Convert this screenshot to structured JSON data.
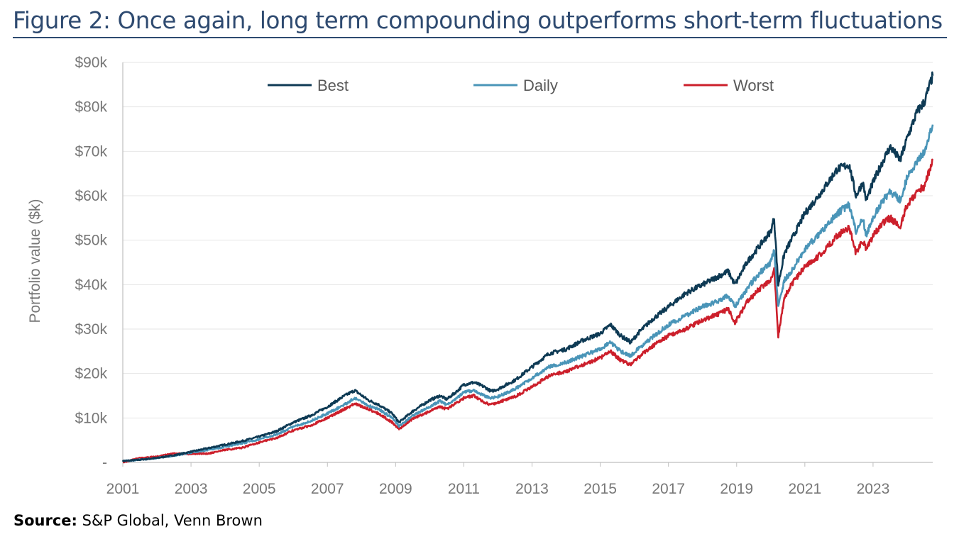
{
  "title": "Figure 2: Once again, long term compounding outperforms short-term fluctuations",
  "source": {
    "label": "Source:",
    "text": " S&P Global, Venn Brown"
  },
  "chart_data": {
    "type": "line",
    "ylabel": "Portfolio value ($k)",
    "xlabel": "",
    "xlim": [
      2001.0,
      2024.75
    ],
    "ylim": [
      0,
      90
    ],
    "yticks": [
      {
        "value": 0,
        "label": "-"
      },
      {
        "value": 10,
        "label": "$10k"
      },
      {
        "value": 20,
        "label": "$20k"
      },
      {
        "value": 30,
        "label": "$30k"
      },
      {
        "value": 40,
        "label": "$40k"
      },
      {
        "value": 50,
        "label": "$50k"
      },
      {
        "value": 60,
        "label": "$60k"
      },
      {
        "value": 70,
        "label": "$70k"
      },
      {
        "value": 80,
        "label": "$80k"
      },
      {
        "value": 90,
        "label": "$90k"
      }
    ],
    "xticks": [
      2001,
      2003,
      2005,
      2007,
      2009,
      2011,
      2013,
      2015,
      2017,
      2019,
      2021,
      2023
    ],
    "grid": "horizontal",
    "legend_position": "top",
    "series": [
      {
        "name": "Best",
        "color": "#0e3a54",
        "x": [
          2001.0,
          2001.5,
          2002.0,
          2002.5,
          2003.0,
          2003.5,
          2004.0,
          2004.5,
          2005.0,
          2005.5,
          2006.0,
          2006.5,
          2007.0,
          2007.5,
          2007.8,
          2008.2,
          2008.5,
          2008.9,
          2009.1,
          2009.5,
          2010.0,
          2010.3,
          2010.5,
          2010.8,
          2011.0,
          2011.3,
          2011.6,
          2011.8,
          2012.0,
          2012.5,
          2013.0,
          2013.5,
          2014.0,
          2014.5,
          2015.0,
          2015.3,
          2015.6,
          2015.9,
          2016.1,
          2016.5,
          2017.0,
          2017.5,
          2018.0,
          2018.5,
          2018.75,
          2018.95,
          2019.3,
          2019.6,
          2020.0,
          2020.1,
          2020.22,
          2020.4,
          2020.6,
          2021.0,
          2021.5,
          2021.95,
          2022.3,
          2022.5,
          2022.7,
          2022.8,
          2023.0,
          2023.3,
          2023.5,
          2023.8,
          2024.0,
          2024.3,
          2024.5,
          2024.75
        ],
        "values": [
          0.3,
          0.6,
          1.0,
          1.6,
          2.4,
          3.2,
          4.0,
          4.8,
          5.8,
          7.0,
          9.0,
          10.5,
          12.5,
          15.0,
          16.2,
          14.0,
          13.0,
          11.0,
          9.0,
          11.5,
          14.0,
          15.0,
          14.2,
          16.0,
          17.5,
          18.0,
          17.0,
          16.0,
          16.5,
          18.5,
          21.5,
          24.5,
          25.5,
          27.5,
          29.0,
          31.0,
          28.5,
          27.0,
          29.0,
          32.0,
          35.0,
          38.0,
          40.0,
          42.0,
          43.0,
          40.0,
          45.0,
          48.0,
          52.0,
          55.0,
          40.0,
          47.0,
          50.0,
          56.0,
          61.0,
          66.0,
          67.0,
          60.0,
          63.0,
          59.0,
          63.0,
          68.0,
          71.0,
          68.0,
          73.0,
          79.0,
          81.0,
          87.0
        ]
      },
      {
        "name": "Daily",
        "color": "#4a95b8",
        "x": [
          2001.0,
          2001.5,
          2002.0,
          2002.5,
          2003.0,
          2003.5,
          2004.0,
          2004.5,
          2005.0,
          2005.5,
          2006.0,
          2006.5,
          2007.0,
          2007.5,
          2007.8,
          2008.2,
          2008.5,
          2008.9,
          2009.1,
          2009.5,
          2010.0,
          2010.3,
          2010.5,
          2010.8,
          2011.0,
          2011.3,
          2011.6,
          2011.8,
          2012.0,
          2012.5,
          2013.0,
          2013.5,
          2014.0,
          2014.5,
          2015.0,
          2015.3,
          2015.6,
          2015.9,
          2016.1,
          2016.5,
          2017.0,
          2017.5,
          2018.0,
          2018.5,
          2018.75,
          2018.95,
          2019.3,
          2019.6,
          2020.0,
          2020.1,
          2020.22,
          2020.4,
          2020.6,
          2021.0,
          2021.5,
          2021.95,
          2022.3,
          2022.5,
          2022.7,
          2022.8,
          2023.0,
          2023.3,
          2023.5,
          2023.8,
          2024.0,
          2024.3,
          2024.5,
          2024.75
        ],
        "values": [
          0.3,
          0.6,
          1.0,
          1.5,
          2.2,
          2.8,
          3.5,
          4.3,
          5.2,
          6.3,
          8.0,
          9.3,
          11.0,
          13.0,
          14.5,
          12.8,
          12.0,
          10.0,
          8.2,
          10.5,
          12.5,
          13.8,
          13.0,
          14.5,
          15.8,
          16.2,
          15.0,
          14.5,
          14.8,
          16.5,
          19.0,
          21.5,
          22.5,
          24.0,
          25.5,
          27.0,
          25.0,
          24.0,
          25.5,
          28.0,
          31.0,
          33.0,
          35.0,
          36.5,
          37.5,
          35.0,
          39.0,
          42.0,
          45.0,
          48.0,
          35.0,
          41.0,
          43.0,
          48.0,
          52.0,
          56.0,
          58.0,
          52.0,
          55.0,
          51.0,
          55.0,
          59.0,
          61.0,
          59.0,
          64.0,
          68.0,
          70.0,
          76.0
        ]
      },
      {
        "name": "Worst",
        "color": "#cc1f2b",
        "x": [
          2001.0,
          2001.5,
          2002.0,
          2002.5,
          2003.0,
          2003.5,
          2004.0,
          2004.5,
          2005.0,
          2005.5,
          2006.0,
          2006.5,
          2007.0,
          2007.5,
          2007.8,
          2008.2,
          2008.5,
          2008.9,
          2009.1,
          2009.5,
          2010.0,
          2010.3,
          2010.5,
          2010.8,
          2011.0,
          2011.3,
          2011.6,
          2011.8,
          2012.0,
          2012.5,
          2013.0,
          2013.5,
          2014.0,
          2014.5,
          2015.0,
          2015.3,
          2015.6,
          2015.9,
          2016.1,
          2016.5,
          2017.0,
          2017.5,
          2018.0,
          2018.5,
          2018.75,
          2018.95,
          2019.3,
          2019.6,
          2020.0,
          2020.1,
          2020.22,
          2020.4,
          2020.6,
          2021.0,
          2021.5,
          2021.95,
          2022.3,
          2022.5,
          2022.7,
          2022.8,
          2023.0,
          2023.3,
          2023.5,
          2023.8,
          2024.0,
          2024.3,
          2024.5,
          2024.75
        ],
        "values": [
          0.0,
          1.0,
          1.3,
          2.0,
          1.9,
          2.0,
          2.8,
          3.3,
          4.5,
          5.5,
          7.2,
          8.3,
          10.0,
          12.0,
          13.2,
          12.0,
          11.0,
          9.0,
          7.5,
          9.8,
          11.5,
          12.5,
          12.0,
          13.5,
          14.5,
          15.0,
          13.5,
          13.0,
          13.5,
          14.8,
          17.0,
          19.5,
          20.5,
          22.0,
          23.5,
          25.0,
          23.0,
          22.0,
          23.5,
          26.0,
          28.5,
          30.0,
          32.0,
          33.5,
          34.5,
          31.5,
          36.0,
          38.5,
          41.0,
          44.0,
          28.5,
          37.0,
          40.0,
          44.0,
          47.0,
          51.0,
          53.0,
          47.0,
          50.0,
          48.0,
          51.0,
          54.0,
          55.0,
          53.0,
          58.0,
          61.0,
          62.0,
          68.0
        ]
      }
    ]
  }
}
